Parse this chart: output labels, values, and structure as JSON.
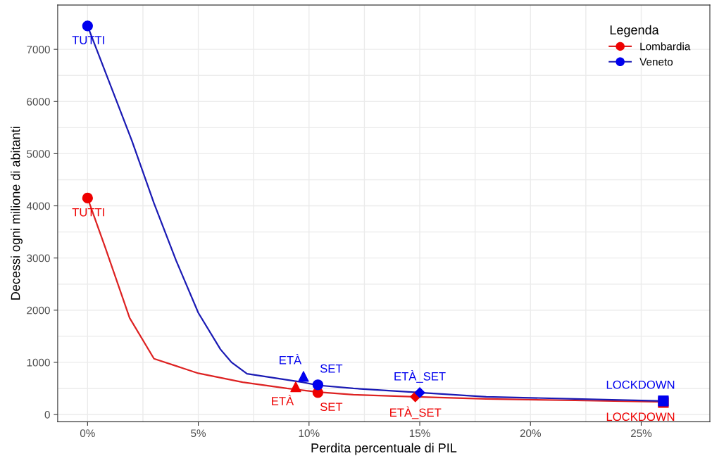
{
  "chart_data": {
    "type": "line",
    "xlabel": "Perdita percentuale di PIL",
    "ylabel": "Decessi ogni milione di abitanti",
    "legend_title": "Legenda",
    "legend": "top right",
    "grid": true,
    "xlim": [
      -1.35,
      28.1
    ],
    "ylim": [
      -140,
      7850
    ],
    "xticks": [
      {
        "value": 0,
        "label": "0%"
      },
      {
        "value": 5,
        "label": "5%"
      },
      {
        "value": 10,
        "label": "10%"
      },
      {
        "value": 15,
        "label": "15%"
      },
      {
        "value": 20,
        "label": "20%"
      },
      {
        "value": 25,
        "label": "25%"
      }
    ],
    "yticks": [
      0,
      1000,
      2000,
      3000,
      4000,
      5000,
      6000,
      7000
    ],
    "series": [
      {
        "name": "Lombardia",
        "color": "#dd2222",
        "x": [
          0,
          0.8,
          1.9,
          3,
          5,
          7,
          9,
          10.4,
          12,
          14.8,
          18,
          22,
          26
        ],
        "values": [
          4150,
          3200,
          1850,
          1070,
          790,
          620,
          500,
          430,
          380,
          340,
          300,
          270,
          240
        ]
      },
      {
        "name": "Veneto",
        "color": "#1a1ab4",
        "x": [
          0,
          1,
          2,
          3,
          4,
          5,
          6,
          6.5,
          7.2,
          9.7,
          10.4,
          12,
          15,
          18,
          22,
          26
        ],
        "values": [
          7450,
          6350,
          5250,
          4050,
          2950,
          1950,
          1250,
          1000,
          780,
          620,
          560,
          500,
          420,
          340,
          300,
          260
        ]
      },
      {
        "type": "scatter",
        "color": "#ee0000",
        "marker": "circle",
        "x": [
          0,
          10.4
        ],
        "values": [
          4150,
          420
        ],
        "value_labels": [
          "TUTTI",
          "SET"
        ]
      },
      {
        "type": "scatter",
        "color": "#ee0000",
        "marker": "triangle",
        "x": [
          9.4
        ],
        "values": [
          530
        ],
        "value_labels": [
          "ETÀ"
        ]
      },
      {
        "type": "scatter",
        "color": "#ee0000",
        "marker": "diamond",
        "x": [
          14.8
        ],
        "values": [
          340
        ],
        "value_labels": [
          "ETÀ_SET"
        ]
      },
      {
        "type": "scatter",
        "color": "#ee0000",
        "marker": "square",
        "x": [
          26
        ],
        "values": [
          230
        ],
        "value_labels": [
          "LOCKDOWN"
        ]
      },
      {
        "type": "scatter",
        "color": "#0000ee",
        "marker": "circle",
        "x": [
          0,
          10.4
        ],
        "values": [
          7450,
          570
        ],
        "value_labels": [
          "TUTTI",
          "SET"
        ]
      },
      {
        "type": "scatter",
        "color": "#0000ee",
        "marker": "triangle",
        "x": [
          9.75
        ],
        "values": [
          730
        ],
        "value_labels": [
          "ETÀ"
        ]
      },
      {
        "type": "scatter",
        "color": "#0000ee",
        "marker": "diamond",
        "x": [
          15
        ],
        "values": [
          420
        ],
        "value_labels": [
          "ETÀ_SET"
        ]
      },
      {
        "type": "scatter",
        "color": "#0000ee",
        "marker": "square",
        "x": [
          26
        ],
        "values": [
          260
        ],
        "value_labels": [
          "LOCKDOWN"
        ]
      }
    ]
  }
}
